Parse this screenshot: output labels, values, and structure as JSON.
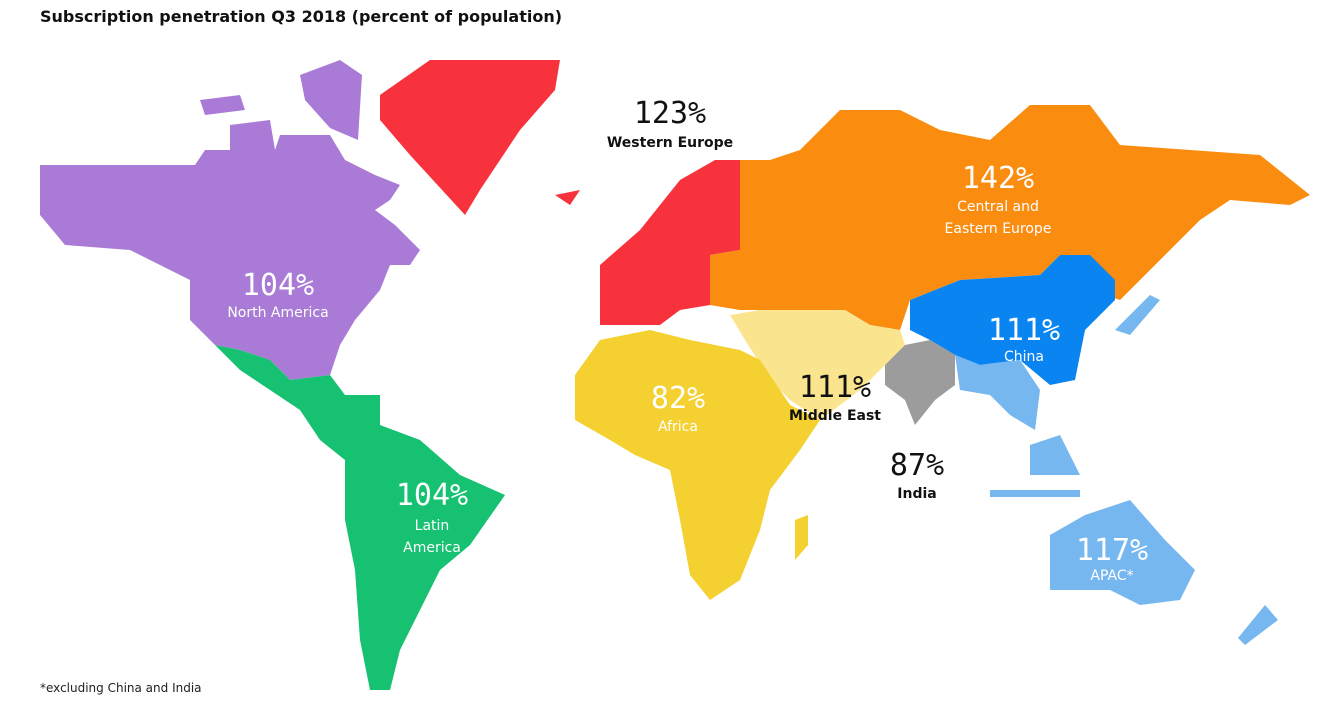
{
  "title": "Subscription penetration Q3 2018 (percent of population)",
  "regions": [
    {
      "value": "104%",
      "name": [
        "North America"
      ],
      "color": "#a97bd6"
    },
    {
      "value": "104%",
      "name": [
        "Latin",
        "America"
      ],
      "color": "#16c172"
    },
    {
      "value": "123%",
      "name": [
        "Western Europe"
      ],
      "color": "#f7323c"
    },
    {
      "value": "142%",
      "name": [
        "Central and",
        "Eastern Europe"
      ],
      "color": "#fa8c0f"
    },
    {
      "value": "82%",
      "name": [
        "Africa"
      ],
      "color": "#f4d030"
    },
    {
      "value": "111%",
      "name": [
        "Middle East"
      ],
      "color": "#fbe48e"
    },
    {
      "value": "87%",
      "name": [
        "India"
      ],
      "color": "#9c9c9c"
    },
    {
      "value": "111%",
      "name": [
        "China"
      ],
      "color": "#0a84f0"
    },
    {
      "value": "117%",
      "name": [
        "APAC*"
      ],
      "color": "#76b7f0"
    }
  ],
  "footnote": "*excluding China and India"
}
